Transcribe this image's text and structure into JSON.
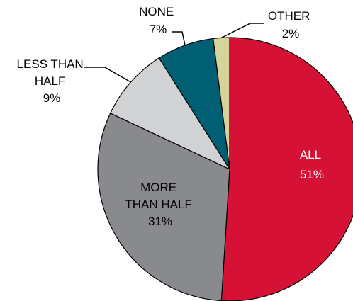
{
  "chart_data": {
    "type": "pie",
    "title": "",
    "slices": [
      {
        "name": "ALL",
        "value": 51,
        "value_label": "51%",
        "color": "#d51235",
        "label_position": "inside"
      },
      {
        "name": "MORE THAN HALF",
        "name_lines": [
          "MORE",
          "THAN HALF"
        ],
        "value": 31,
        "value_label": "31%",
        "color": "#898a8d",
        "label_position": "inside"
      },
      {
        "name": "LESS THAN HALF",
        "name_lines": [
          "LESS THAN",
          "HALF"
        ],
        "value": 9,
        "value_label": "9%",
        "color": "#d1d2d4",
        "label_position": "outside"
      },
      {
        "name": "NONE",
        "value": 7,
        "value_label": "7%",
        "color": "#005f73",
        "label_position": "outside"
      },
      {
        "name": "OTHER",
        "value": 2,
        "value_label": "2%",
        "color": "#d5d59b",
        "label_position": "outside"
      }
    ]
  }
}
